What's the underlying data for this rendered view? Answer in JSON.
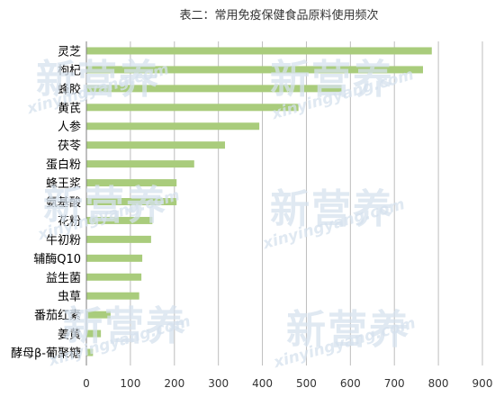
{
  "watermark": {
    "cn": "新营养",
    "en": "xinyingyang.com"
  },
  "colors": {
    "bar": "#a9cc7c",
    "grid": "#bdbdbd",
    "axis": "#7f7f7f",
    "text": "#000000",
    "watermark": "#d6e2ee"
  },
  "chart_data": {
    "type": "bar",
    "orientation": "horizontal",
    "title": "表二：常用免疫保健食品原料使用频次",
    "categories": [
      "灵芝",
      "枸杞",
      "蜂胶",
      "黄芪",
      "人参",
      "茯苓",
      "蛋白粉",
      "蜂王浆",
      "氨基酸",
      "花粉",
      "牛初粉",
      "辅酶Q10",
      "益生菌",
      "虫草",
      "番茄红素",
      "姜黄",
      "酵母β-葡聚糖"
    ],
    "values": [
      785,
      765,
      580,
      482,
      393,
      315,
      245,
      205,
      205,
      150,
      147,
      127,
      125,
      120,
      55,
      33,
      15
    ],
    "xlim": [
      0,
      900
    ],
    "xticks": [
      0,
      100,
      200,
      300,
      400,
      500,
      600,
      700,
      800,
      900
    ],
    "grid": true,
    "legend": false
  }
}
